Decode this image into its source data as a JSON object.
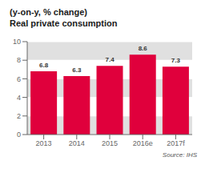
{
  "chart_data": {
    "type": "bar",
    "title": "Real private consumption",
    "subtitle": "(y-on-y, % change)",
    "categories": [
      "2013",
      "2014",
      "2015",
      "2016e",
      "2017f"
    ],
    "values": [
      6.8,
      6.3,
      7.4,
      8.6,
      7.3
    ],
    "color": "#e0003c",
    "ylim": [
      0,
      10
    ],
    "yticks": [
      0,
      2,
      4,
      6,
      8,
      10
    ],
    "grid": true,
    "data_labels": true,
    "annotations": [
      "Source: IHS"
    ]
  }
}
